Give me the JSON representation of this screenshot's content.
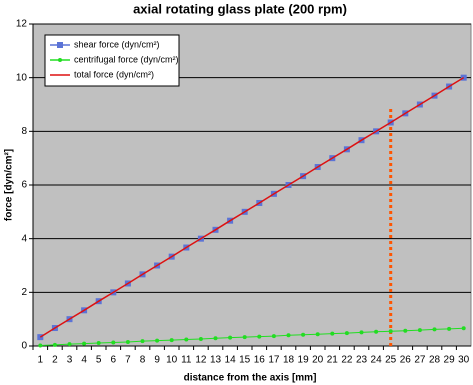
{
  "chart_data": {
    "type": "line",
    "title": "axial rotating glass plate (200 rpm)",
    "xlabel": "distance from the axis [mm]",
    "ylabel": "force [dyn/cm²]",
    "categories": [
      1,
      2,
      3,
      4,
      5,
      6,
      7,
      8,
      9,
      10,
      11,
      12,
      13,
      14,
      15,
      16,
      17,
      18,
      19,
      20,
      21,
      22,
      23,
      24,
      25,
      26,
      27,
      28,
      29,
      30
    ],
    "series": [
      {
        "name": "shear force (dyn/cm²)",
        "color": "#5b73d6",
        "marker": "square",
        "line": false,
        "values": [
          0.33,
          0.67,
          1.0,
          1.33,
          1.67,
          2.0,
          2.33,
          2.67,
          3.0,
          3.33,
          3.67,
          4.0,
          4.33,
          4.67,
          5.0,
          5.33,
          5.67,
          6.0,
          6.33,
          6.67,
          7.0,
          7.33,
          7.67,
          8.0,
          8.33,
          8.67,
          9.0,
          9.33,
          9.67,
          10.0
        ]
      },
      {
        "name": "centrifugal force (dyn/cm²)",
        "color": "#22dd22",
        "marker": "circle",
        "line": true,
        "values": [
          0.02,
          0.04,
          0.07,
          0.09,
          0.11,
          0.13,
          0.15,
          0.18,
          0.2,
          0.22,
          0.24,
          0.26,
          0.29,
          0.31,
          0.33,
          0.35,
          0.37,
          0.4,
          0.42,
          0.44,
          0.46,
          0.48,
          0.51,
          0.53,
          0.55,
          0.57,
          0.59,
          0.62,
          0.64,
          0.66
        ]
      },
      {
        "name": "total force (dyn/cm²)",
        "color": "#dd1111",
        "marker": "none",
        "line": true,
        "values": [
          0.33,
          0.67,
          1.0,
          1.33,
          1.67,
          2.0,
          2.33,
          2.67,
          3.0,
          3.33,
          3.67,
          4.0,
          4.33,
          4.67,
          5.0,
          5.33,
          5.67,
          6.0,
          6.33,
          6.67,
          7.0,
          7.33,
          7.67,
          8.0,
          8.33,
          8.67,
          9.0,
          9.33,
          9.67,
          10.0
        ]
      }
    ],
    "reference_line": {
      "x": 25,
      "y": [
        0,
        8.9
      ],
      "color": "#ff5500"
    },
    "ylim": [
      0,
      12
    ],
    "yticks": [
      0,
      2,
      4,
      6,
      8,
      10,
      12
    ],
    "grid": true,
    "legend": "top-left",
    "background": "#c0c0c0"
  }
}
